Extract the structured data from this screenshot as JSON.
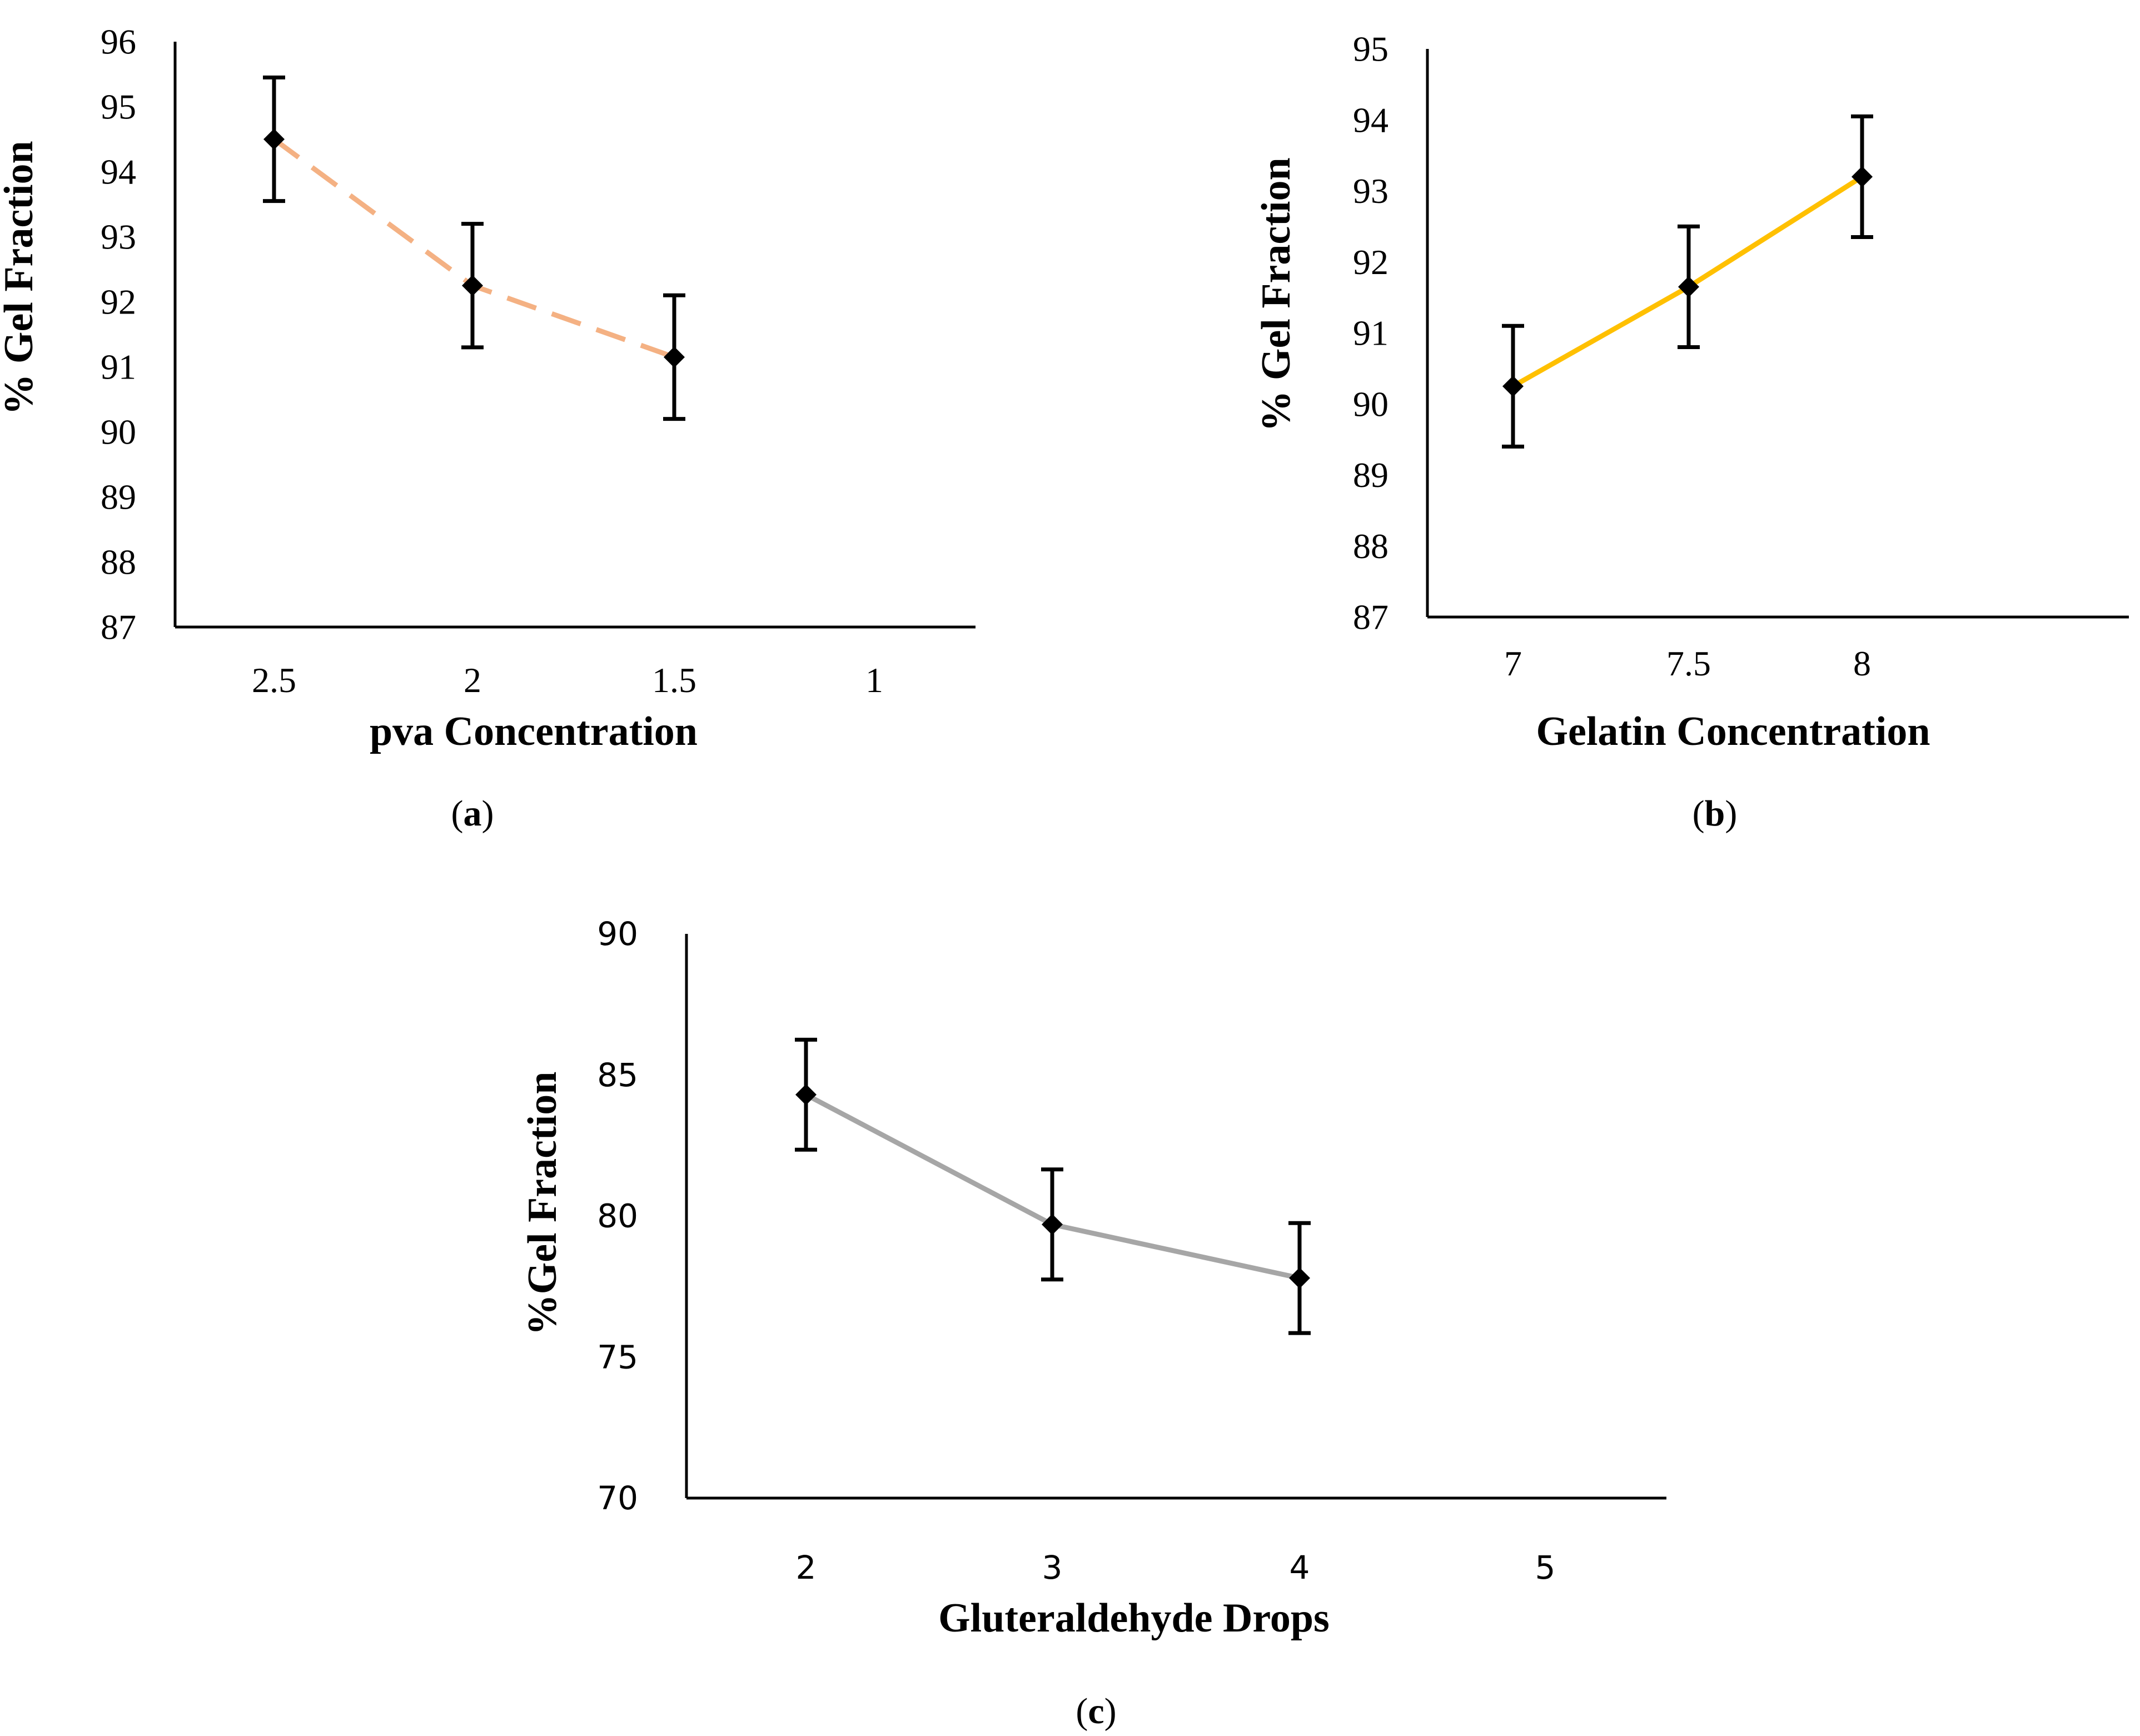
{
  "chart_data": [
    {
      "type": "line",
      "panel_label": "a",
      "title": "",
      "xlabel": "pva Concentration",
      "ylabel": "% Gel Fraction",
      "categories": [
        "2.5",
        "2",
        "1.5",
        "1"
      ],
      "x": [
        2.5,
        2,
        1.5
      ],
      "values": [
        94.5,
        92.25,
        91.15
      ],
      "errors": [
        0.95,
        0.95,
        0.95
      ],
      "ylim": [
        87,
        96
      ],
      "yticks": [
        87,
        88,
        89,
        90,
        91,
        92,
        93,
        94,
        95,
        96
      ],
      "line_style": "dashed",
      "line_color": "#f4b183",
      "grid": false,
      "legend": "none"
    },
    {
      "type": "line",
      "panel_label": "b",
      "title": "",
      "xlabel": "Gelatin Concentration",
      "ylabel": "% Gel Fraction",
      "categories": [
        "7",
        "7.5",
        "8"
      ],
      "x": [
        7,
        7.5,
        8
      ],
      "values": [
        90.25,
        91.65,
        93.2
      ],
      "errors": [
        0.85,
        0.85,
        0.85
      ],
      "ylim": [
        87,
        95
      ],
      "yticks": [
        87,
        88,
        89,
        90,
        91,
        92,
        93,
        94,
        95
      ],
      "line_style": "solid",
      "line_color": "#ffc000",
      "grid": false,
      "legend": "none"
    },
    {
      "type": "line",
      "panel_label": "c",
      "title": "",
      "xlabel": "Gluteraldehyde Drops",
      "ylabel": "%Gel Fraction",
      "categories": [
        "2",
        "3",
        "4",
        "5"
      ],
      "x": [
        2,
        3,
        4
      ],
      "values": [
        84.3,
        79.7,
        77.8
      ],
      "errors": [
        1.95,
        1.95,
        1.95
      ],
      "ylim": [
        70,
        90
      ],
      "yticks": [
        70,
        75,
        80,
        85,
        90
      ],
      "line_style": "solid",
      "line_color": "#a6a6a6",
      "grid": false,
      "legend": "none"
    }
  ]
}
